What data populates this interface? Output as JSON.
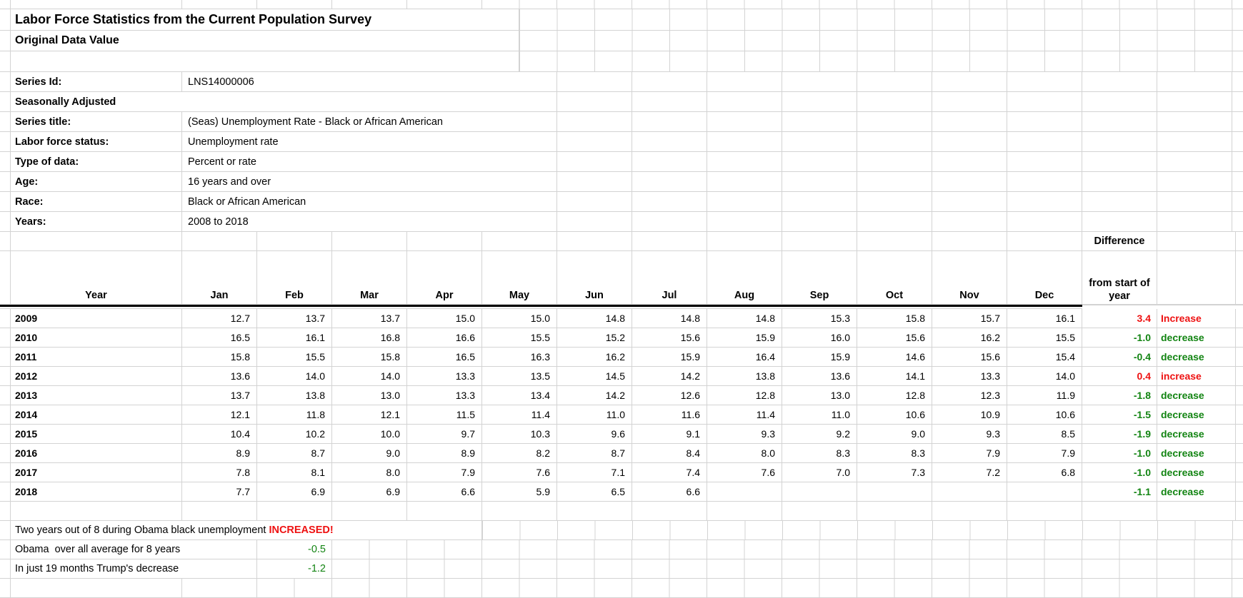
{
  "title": "Labor Force Statistics from the Current Population Survey",
  "subtitle": "Original Data Value",
  "metadata": [
    {
      "label": "Series Id:",
      "value": "LNS14000006"
    },
    {
      "label": "Seasonally Adjusted",
      "value": ""
    },
    {
      "label": "Series title:",
      "value": "(Seas) Unemployment Rate - Black or African American"
    },
    {
      "label": "Labor force status:",
      "value": "Unemployment rate"
    },
    {
      "label": "Type of data:",
      "value": "Percent or rate"
    },
    {
      "label": "Age:",
      "value": "16 years and over"
    },
    {
      "label": "Race:",
      "value": "Black or African American"
    },
    {
      "label": "Years:",
      "value": "2008 to 2018"
    }
  ],
  "table": {
    "year_header": "Year",
    "month_headers": [
      "Jan",
      "Feb",
      "Mar",
      "Apr",
      "May",
      "Jun",
      "Jul",
      "Aug",
      "Sep",
      "Oct",
      "Nov",
      "Dec"
    ],
    "difference_label": "Difference",
    "difference_subheader": "from start of year",
    "rows": [
      {
        "year": "2009",
        "values": [
          "12.7",
          "13.7",
          "13.7",
          "15.0",
          "15.0",
          "14.8",
          "14.8",
          "14.8",
          "15.3",
          "15.8",
          "15.7",
          "16.1"
        ],
        "difference": "3.4",
        "direction": "Increase",
        "trend": "increase"
      },
      {
        "year": "2010",
        "values": [
          "16.5",
          "16.1",
          "16.8",
          "16.6",
          "15.5",
          "15.2",
          "15.6",
          "15.9",
          "16.0",
          "15.6",
          "16.2",
          "15.5"
        ],
        "difference": "-1.0",
        "direction": "decrease",
        "trend": "decrease"
      },
      {
        "year": "2011",
        "values": [
          "15.8",
          "15.5",
          "15.8",
          "16.5",
          "16.3",
          "16.2",
          "15.9",
          "16.4",
          "15.9",
          "14.6",
          "15.6",
          "15.4"
        ],
        "difference": "-0.4",
        "direction": "decrease",
        "trend": "decrease"
      },
      {
        "year": "2012",
        "values": [
          "13.6",
          "14.0",
          "14.0",
          "13.3",
          "13.5",
          "14.5",
          "14.2",
          "13.8",
          "13.6",
          "14.1",
          "13.3",
          "14.0"
        ],
        "difference": "0.4",
        "direction": "increase",
        "trend": "increase"
      },
      {
        "year": "2013",
        "values": [
          "13.7",
          "13.8",
          "13.0",
          "13.3",
          "13.4",
          "14.2",
          "12.6",
          "12.8",
          "13.0",
          "12.8",
          "12.3",
          "11.9"
        ],
        "difference": "-1.8",
        "direction": "decrease",
        "trend": "decrease"
      },
      {
        "year": "2014",
        "values": [
          "12.1",
          "11.8",
          "12.1",
          "11.5",
          "11.4",
          "11.0",
          "11.6",
          "11.4",
          "11.0",
          "10.6",
          "10.9",
          "10.6"
        ],
        "difference": "-1.5",
        "direction": "decrease",
        "trend": "decrease"
      },
      {
        "year": "2015",
        "values": [
          "10.4",
          "10.2",
          "10.0",
          "9.7",
          "10.3",
          "9.6",
          "9.1",
          "9.3",
          "9.2",
          "9.0",
          "9.3",
          "8.5"
        ],
        "difference": "-1.9",
        "direction": "decrease",
        "trend": "decrease"
      },
      {
        "year": "2016",
        "values": [
          "8.9",
          "8.7",
          "9.0",
          "8.9",
          "8.2",
          "8.7",
          "8.4",
          "8.0",
          "8.3",
          "8.3",
          "7.9",
          "7.9"
        ],
        "difference": "-1.0",
        "direction": "decrease",
        "trend": "decrease"
      },
      {
        "year": "2017",
        "values": [
          "7.8",
          "8.1",
          "8.0",
          "7.9",
          "7.6",
          "7.1",
          "7.4",
          "7.6",
          "7.0",
          "7.3",
          "7.2",
          "6.8"
        ],
        "difference": "-1.0",
        "direction": "decrease",
        "trend": "decrease"
      },
      {
        "year": "2018",
        "values": [
          "7.7",
          "6.9",
          "6.9",
          "6.6",
          "5.9",
          "6.5",
          "6.6",
          "",
          "",
          "",
          "",
          ""
        ],
        "difference": "-1.1",
        "direction": "decrease",
        "trend": "decrease"
      }
    ]
  },
  "notes": {
    "line1": "Two years out of 8 during Obama black unemployment ",
    "line1_highlight": "INCREASED!",
    "line2_label": "Obama  over all average for 8 years",
    "line2_value": "-0.5",
    "line3_label": "In just 19 months Trump's decrease",
    "line3_value": "-1.2"
  },
  "colors": {
    "increase": "#ee1111",
    "decrease": "#128412",
    "grid_line": "#d3d3d3"
  }
}
